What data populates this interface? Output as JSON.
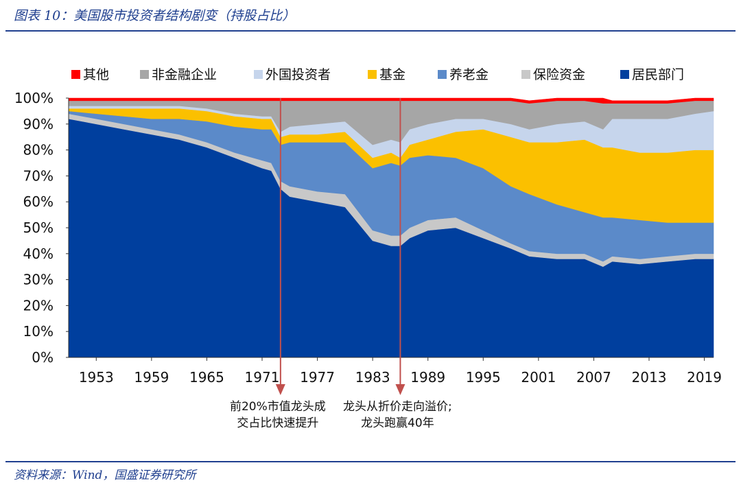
{
  "figure_title": "图表 10：美国股市投资者结构剧变（持股占比）",
  "source": "资料来源：Wind，国盛证券研究所",
  "chart_data": {
    "type": "area",
    "stacked": true,
    "x": [
      1950,
      1953,
      1956,
      1959,
      1962,
      1965,
      1968,
      1971,
      1972,
      1973,
      1974,
      1977,
      1980,
      1983,
      1985,
      1986,
      1987,
      1989,
      1992,
      1995,
      1998,
      2000,
      2003,
      2006,
      2008,
      2009,
      2012,
      2015,
      2018,
      2020
    ],
    "xlim": [
      1950,
      2020
    ],
    "x_ticks": [
      "1953",
      "1959",
      "1965",
      "1971",
      "1977",
      "1983",
      "1989",
      "1995",
      "2001",
      "2007",
      "2013",
      "2019"
    ],
    "y_ticks": [
      "0%",
      "10%",
      "20%",
      "30%",
      "40%",
      "50%",
      "60%",
      "70%",
      "80%",
      "90%",
      "100%"
    ],
    "ylim": [
      0,
      100
    ],
    "grid": false,
    "legend_position": "top",
    "series": [
      {
        "name": "居民部门",
        "color": "#003f9e",
        "values": [
          92,
          90,
          88,
          86,
          84,
          81,
          77,
          73,
          72,
          65,
          62,
          60,
          58,
          45,
          43,
          43,
          46,
          49,
          50,
          46,
          42,
          39,
          38,
          38,
          35,
          37,
          36,
          37,
          38,
          38
        ]
      },
      {
        "name": "保险资金",
        "color": "#c8c8c8",
        "values": [
          2,
          2,
          2,
          2,
          2,
          2,
          2,
          3,
          3,
          3,
          4,
          4,
          5,
          4,
          4,
          4,
          4,
          4,
          4,
          3,
          2,
          2,
          2,
          2,
          2,
          2,
          2,
          2,
          2,
          2
        ]
      },
      {
        "name": "养老金",
        "color": "#5b8ac9",
        "values": [
          1,
          2,
          3,
          4,
          6,
          8,
          10,
          12,
          13,
          14,
          17,
          19,
          20,
          24,
          28,
          27,
          27,
          25,
          23,
          24,
          22,
          22,
          19,
          16,
          17,
          15,
          15,
          13,
          12,
          12
        ]
      },
      {
        "name": "基金",
        "color": "#fbc000",
        "values": [
          1,
          2,
          3,
          4,
          4,
          4,
          4,
          4,
          4,
          3,
          3,
          3,
          4,
          4,
          4,
          3,
          5,
          6,
          10,
          15,
          19,
          20,
          24,
          28,
          27,
          27,
          26,
          27,
          28,
          28
        ]
      },
      {
        "name": "外国投资者",
        "color": "#c6d5ec",
        "values": [
          1,
          1,
          1,
          1,
          1,
          1,
          1,
          1,
          1,
          2,
          3,
          4,
          4,
          5,
          5,
          6,
          6,
          6,
          5,
          4,
          5,
          5,
          7,
          7,
          7,
          11,
          13,
          13,
          14,
          15
        ]
      },
      {
        "name": "非金融企业",
        "color": "#a6a6a6",
        "values": [
          2,
          2,
          2,
          2,
          2,
          3,
          5,
          6,
          6,
          12,
          10,
          9,
          8,
          17,
          15,
          16,
          11,
          9,
          7,
          7,
          9,
          10,
          9,
          8,
          10,
          6,
          6,
          6,
          5,
          4
        ]
      },
      {
        "name": "其他",
        "color": "#ff0000",
        "values": [
          1,
          1,
          1,
          1,
          1,
          1,
          1,
          1,
          1,
          1,
          1,
          1,
          1,
          1,
          1,
          1,
          1,
          1,
          1,
          1,
          1,
          1,
          1,
          1,
          2,
          1,
          1,
          1,
          1,
          1
        ]
      }
    ],
    "annotations": [
      {
        "x": 1973,
        "text_lines": [
          "前20%市值龙头成",
          "交占比快速提升"
        ]
      },
      {
        "x": 1986,
        "text_lines": [
          "龙头从折价走向溢价;",
          "龙头跑赢40年"
        ]
      }
    ],
    "annotation_color": "#c0504d"
  }
}
